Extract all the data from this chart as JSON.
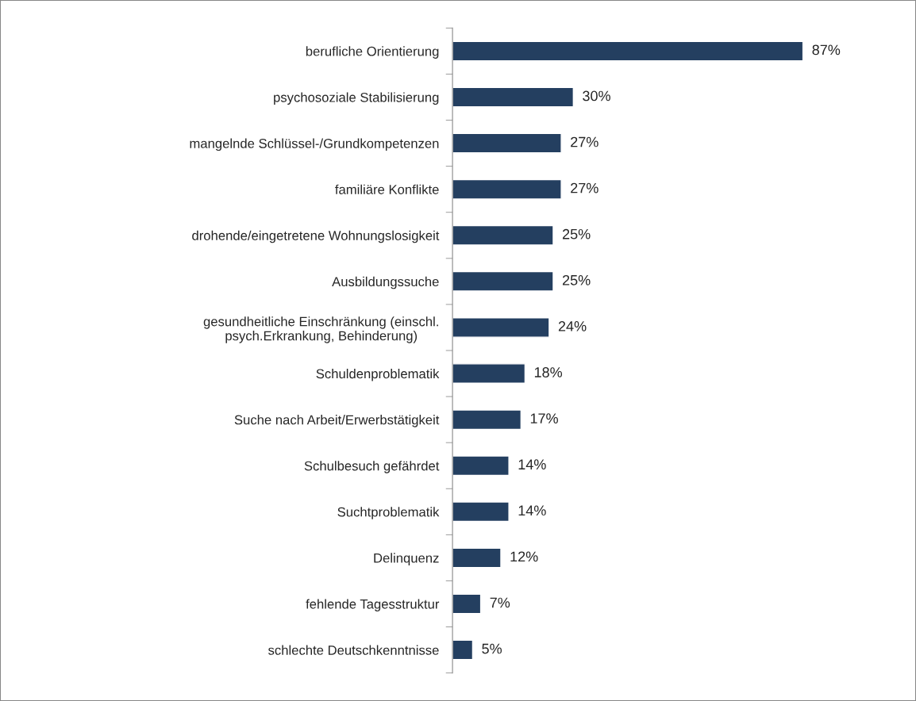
{
  "chart_data": {
    "type": "bar",
    "orientation": "horizontal",
    "categories": [
      "berufliche Orientierung",
      "psychosoziale Stabilisierung",
      "mangelnde Schlüssel-/Grundkompetenzen",
      "familiäre Konflikte",
      "drohende/eingetretene Wohnungslosigkeit",
      "Ausbildungssuche",
      "gesundheitliche Einschränkung (einschl.\npsych.Erkrankung, Behinderung)",
      "Schuldenproblematik",
      "Suche nach Arbeit/Erwerbstätigkeit",
      "Schulbesuch gefährdet",
      "Suchtproblematik",
      "Delinquenz",
      "fehlende Tagesstruktur",
      "schlechte Deutschkenntnisse"
    ],
    "values": [
      87,
      30,
      27,
      27,
      25,
      25,
      24,
      18,
      17,
      14,
      14,
      12,
      7,
      5
    ],
    "value_labels": [
      "87%",
      "30%",
      "27%",
      "27%",
      "25%",
      "25%",
      "24%",
      "18%",
      "17%",
      "14%",
      "14%",
      "12%",
      "7%",
      "5%"
    ],
    "color": "#243f60",
    "grid": false,
    "legend": false
  }
}
